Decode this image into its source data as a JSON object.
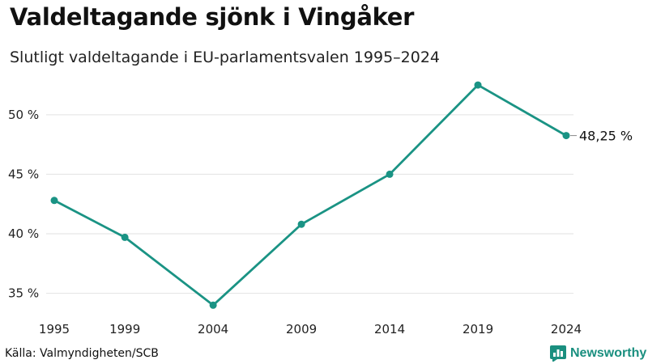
{
  "header": {
    "title": "Valdeltagande sjönk i Vingåker",
    "subtitle": "Slutligt valdeltagande i EU-parlamentsvalen 1995–2024"
  },
  "footer": {
    "source": "Källa: Valmyndigheten/SCB",
    "brand": "Newsworthy"
  },
  "colors": {
    "line": "#1a9384",
    "grid": "#e2e2e2",
    "brand": "#1a8f7f"
  },
  "chart_data": {
    "type": "line",
    "title": "Valdeltagande sjönk i Vingåker",
    "subtitle": "Slutligt valdeltagande i EU-parlamentsvalen 1995–2024",
    "xlabel": "",
    "ylabel": "",
    "x": [
      1995,
      1999,
      2004,
      2009,
      2014,
      2019,
      2024
    ],
    "x_tick_labels": [
      "1995",
      "1999",
      "2004",
      "2009",
      "2014",
      "2019",
      "2024"
    ],
    "series": [
      {
        "name": "Valdeltagande",
        "values": [
          42.8,
          39.7,
          34.0,
          40.8,
          45.0,
          52.5,
          48.25
        ]
      }
    ],
    "y_ticks": [
      35,
      40,
      45,
      50
    ],
    "y_tick_labels": [
      "35 %",
      "40 %",
      "45 %",
      "50 %"
    ],
    "ylim": [
      33,
      54
    ],
    "grid": true,
    "end_label": "48,25 %",
    "source": "Källa: Valmyndigheten/SCB"
  }
}
